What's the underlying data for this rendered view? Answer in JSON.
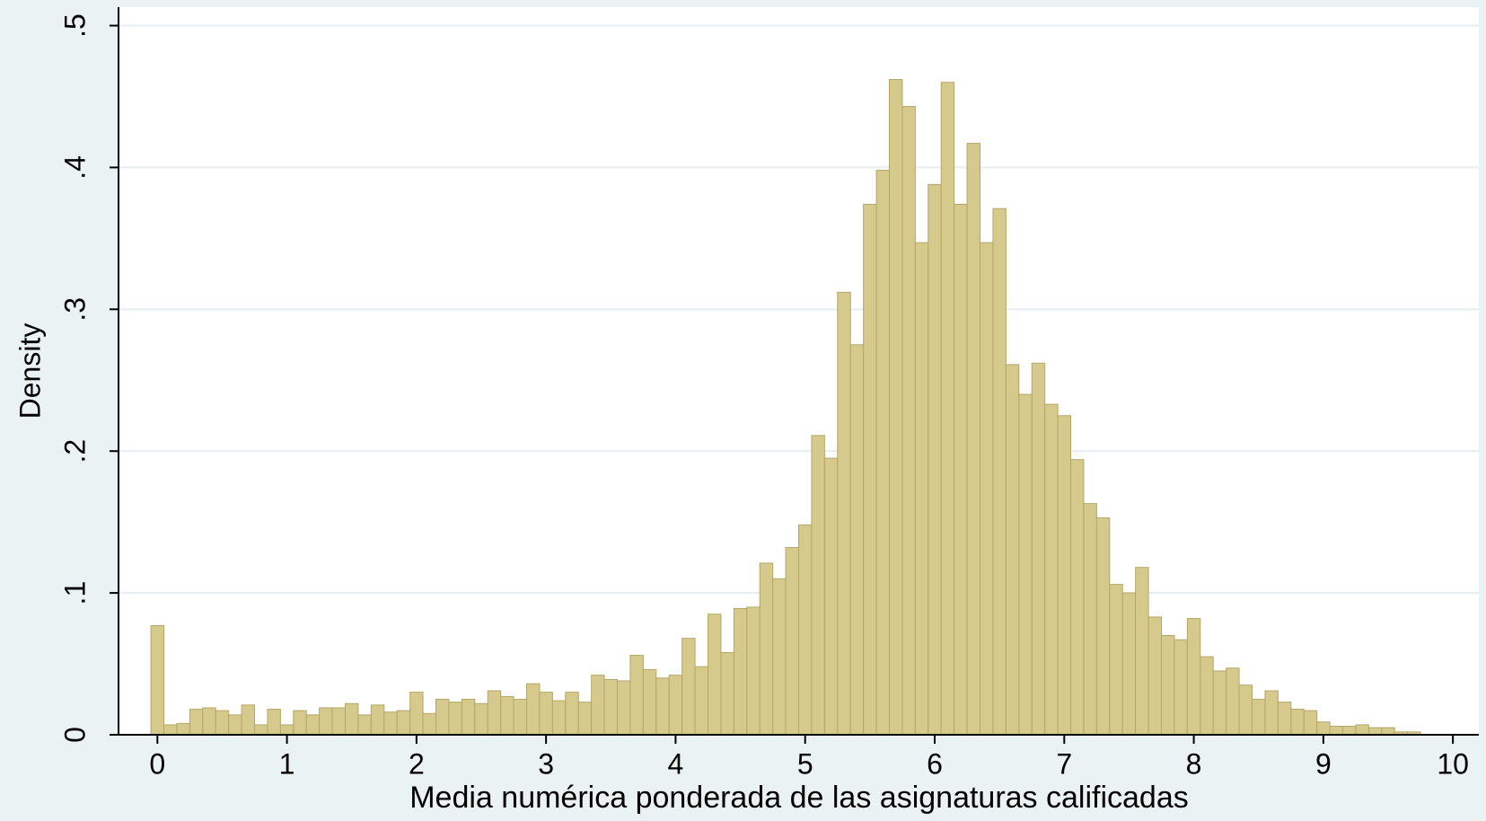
{
  "chart_data": {
    "type": "histogram",
    "xlabel": "Media numérica ponderada de las asignaturas calificadas",
    "ylabel": "Density",
    "color": "#d5ca8c",
    "edgecolor": "#b3a768",
    "bins": [
      -0.05,
      0.05,
      0.15,
      0.25,
      0.35,
      0.45,
      0.55,
      0.65,
      0.75,
      0.85,
      0.95,
      1.05,
      1.15,
      1.25,
      1.35,
      1.45,
      1.55,
      1.65,
      1.75,
      1.85,
      1.95,
      2.05,
      2.15,
      2.25,
      2.35,
      2.45,
      2.55,
      2.65,
      2.75,
      2.85,
      2.95,
      3.05,
      3.15,
      3.25,
      3.35,
      3.45,
      3.55,
      3.65,
      3.75,
      3.85,
      3.95,
      4.05,
      4.15,
      4.25,
      4.35,
      4.45,
      4.55,
      4.65,
      4.75,
      4.85,
      4.95,
      5.05,
      5.15,
      5.25,
      5.35,
      5.45,
      5.55,
      5.65,
      5.75,
      5.85,
      5.95,
      6.05,
      6.15,
      6.25,
      6.35,
      6.45,
      6.55,
      6.65,
      6.75,
      6.85,
      6.95,
      7.05,
      7.15,
      7.25,
      7.35,
      7.45,
      7.55,
      7.65,
      7.75,
      7.85,
      7.95,
      8.05,
      8.15,
      8.25,
      8.35,
      8.45,
      8.55,
      8.65,
      8.75,
      8.85,
      8.95,
      9.05,
      9.15,
      9.25,
      9.35,
      9.45,
      9.55,
      9.65,
      9.75
    ],
    "values": [
      0.077,
      0.007,
      0.008,
      0.018,
      0.019,
      0.017,
      0.014,
      0.021,
      0.007,
      0.018,
      0.007,
      0.017,
      0.014,
      0.019,
      0.019,
      0.022,
      0.014,
      0.021,
      0.016,
      0.017,
      0.03,
      0.015,
      0.025,
      0.023,
      0.025,
      0.022,
      0.031,
      0.027,
      0.025,
      0.036,
      0.03,
      0.024,
      0.03,
      0.023,
      0.042,
      0.039,
      0.038,
      0.056,
      0.046,
      0.04,
      0.042,
      0.068,
      0.048,
      0.085,
      0.058,
      0.089,
      0.09,
      0.121,
      0.11,
      0.132,
      0.148,
      0.211,
      0.195,
      0.312,
      0.275,
      0.374,
      0.398,
      0.462,
      0.443,
      0.347,
      0.388,
      0.46,
      0.374,
      0.417,
      0.347,
      0.371,
      0.261,
      0.24,
      0.262,
      0.233,
      0.225,
      0.194,
      0.163,
      0.153,
      0.106,
      0.1,
      0.118,
      0.083,
      0.07,
      0.067,
      0.082,
      0.055,
      0.045,
      0.047,
      0.035,
      0.025,
      0.031,
      0.023,
      0.018,
      0.017,
      0.009,
      0.006,
      0.006,
      0.007,
      0.005,
      0.005,
      0.002,
      0.002
    ],
    "xlim": [
      -0.3,
      10.2
    ],
    "ylim": [
      0,
      0.513
    ],
    "xticks": [
      0,
      1,
      2,
      3,
      4,
      5,
      6,
      7,
      8,
      9,
      10
    ],
    "yticks": [
      0,
      {
        "value": 0.1,
        "label": ".1"
      },
      {
        "value": 0.2,
        "label": ".2"
      },
      {
        "value": 0.3,
        "label": ".3"
      },
      {
        "value": 0.4,
        "label": ".4"
      },
      {
        "value": 0.5,
        "label": ".5"
      }
    ],
    "grid": true
  }
}
